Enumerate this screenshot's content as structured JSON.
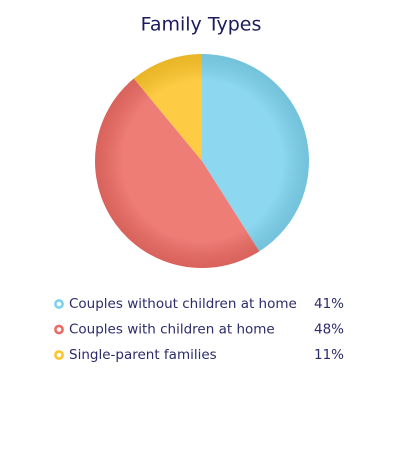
{
  "chart_data": {
    "type": "pie",
    "title": "Family Types",
    "categories": [
      "Couples without children at home",
      "Couples with children at home",
      "Single-parent families"
    ],
    "values": [
      41,
      48,
      11
    ],
    "value_labels": [
      "41%",
      "48%",
      "11%"
    ],
    "colors": [
      "#7dd3ee",
      "#ec6b64",
      "#fdc52a"
    ]
  }
}
